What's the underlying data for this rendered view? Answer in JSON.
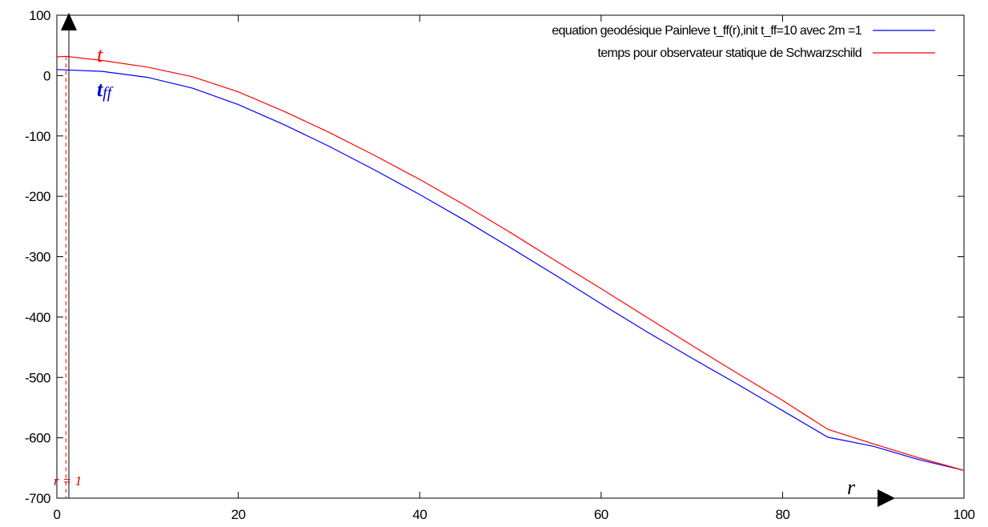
{
  "chart_data": {
    "type": "line",
    "title": "",
    "xlabel": "",
    "ylabel": "",
    "xlim": [
      0,
      100
    ],
    "ylim": [
      -700,
      100
    ],
    "x_ticks": [
      "0",
      "20",
      "40",
      "60",
      "80",
      "100"
    ],
    "y_ticks": [
      "100",
      "0",
      "-100",
      "-200",
      "-300",
      "-400",
      "-500",
      "-600",
      "-700"
    ],
    "grid": false,
    "legend_position": "top-right",
    "series": [
      {
        "name": "equation geodésique Painleve t_ff(r),init t_ff=10 avec 2m =1",
        "color": "#0000ff",
        "x": [
          0,
          5,
          10,
          15,
          20,
          25,
          30,
          35,
          40,
          45,
          50,
          55,
          60,
          65,
          70,
          75,
          80,
          85,
          90,
          95,
          100
        ],
        "y": [
          10,
          7,
          -3,
          -21,
          -48,
          -81,
          -117,
          -156,
          -197,
          -240,
          -285,
          -331,
          -378,
          -424,
          -468,
          -511,
          -555,
          -599,
          -614,
          -636,
          -654
        ]
      },
      {
        "name": "temps pour observateur statique de Schwarzschild",
        "color": "#ff0000",
        "x": [
          0,
          1,
          5,
          10,
          15,
          20,
          25,
          30,
          35,
          40,
          45,
          50,
          55,
          60,
          65,
          70,
          75,
          80,
          85,
          90,
          95,
          100
        ],
        "y": [
          31,
          32,
          25,
          14,
          -2,
          -27,
          -59,
          -94,
          -132,
          -172,
          -215,
          -260,
          -307,
          -353,
          -400,
          -447,
          -493,
          -538,
          -586,
          -610,
          -633,
          -654
        ]
      }
    ],
    "annotations": {
      "t_label": "t",
      "tff_label": "t",
      "tff_subscript": "ff",
      "r_label": "r",
      "r_eq_label": "r = 1",
      "r_eq_value": 1
    }
  }
}
